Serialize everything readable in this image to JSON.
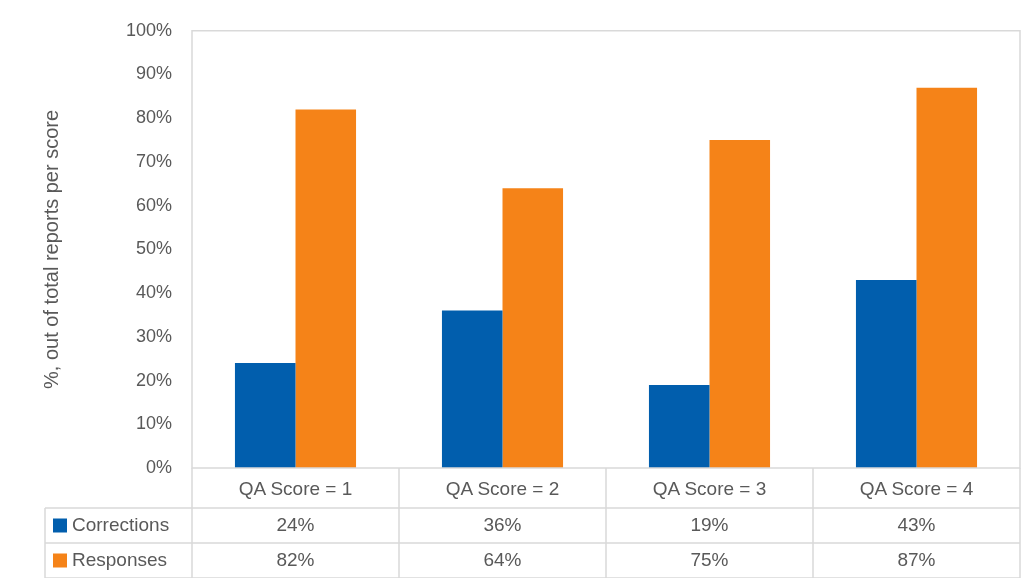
{
  "chart_data": {
    "type": "bar",
    "categories": [
      "QA Score = 1",
      "QA Score = 2",
      "QA Score = 3",
      "QA Score = 4"
    ],
    "series": [
      {
        "name": "Corrections",
        "color": "#015ead",
        "values": [
          24,
          36,
          19,
          43
        ],
        "value_labels": [
          "24%",
          "36%",
          "19%",
          "43%"
        ]
      },
      {
        "name": "Responses",
        "color": "#f58318",
        "values": [
          82,
          64,
          75,
          87
        ],
        "value_labels": [
          "82%",
          "64%",
          "75%",
          "87%"
        ]
      }
    ],
    "ylabel": "%, out of total reports per score",
    "ylim": [
      0,
      100
    ],
    "yticks": [
      {
        "value": 0,
        "label": "0%"
      },
      {
        "value": 10,
        "label": "10%"
      },
      {
        "value": 20,
        "label": "20%"
      },
      {
        "value": 30,
        "label": "30%"
      },
      {
        "value": 40,
        "label": "40%"
      },
      {
        "value": 50,
        "label": "50%"
      },
      {
        "value": 60,
        "label": "60%"
      },
      {
        "value": 70,
        "label": "70%"
      },
      {
        "value": 80,
        "label": "80%"
      },
      {
        "value": 90,
        "label": "90%"
      },
      {
        "value": 100,
        "label": "100%"
      }
    ],
    "grid": false,
    "legend": "bottom"
  }
}
